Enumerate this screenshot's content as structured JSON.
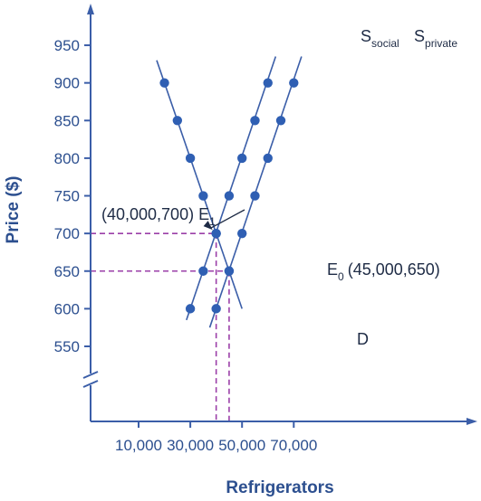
{
  "chart_data": {
    "type": "line",
    "xlabel": "Refrigerators",
    "ylabel": "Price ($)",
    "x_ticks": [
      10000,
      30000,
      50000,
      70000
    ],
    "x_tick_labels": [
      "10,000",
      "30,000",
      "50,000",
      "70,000"
    ],
    "y_ticks": [
      550,
      600,
      650,
      700,
      750,
      800,
      850,
      900,
      950
    ],
    "y_tick_labels": [
      "550",
      "600",
      "650",
      "700",
      "750",
      "800",
      "850",
      "900",
      "950"
    ],
    "y_axis_break": true,
    "xlim": [
      0,
      75000
    ],
    "ylim": [
      550,
      950
    ],
    "colors": {
      "axis": "#3b5ea8",
      "line": "#3b5ea8",
      "point": "#2f5fb3",
      "guide": "#9b3fa8",
      "text": "#1e2b45",
      "axis_text": "#2c4f8f"
    },
    "series": [
      {
        "key": "d",
        "label": "D",
        "points": [
          [
            20000,
            900
          ],
          [
            25000,
            850
          ],
          [
            30000,
            800
          ],
          [
            35000,
            750
          ],
          [
            40000,
            700
          ],
          [
            45000,
            650
          ]
        ],
        "line_extent": [
          [
            17000,
            930
          ],
          [
            50000,
            600
          ]
        ]
      },
      {
        "key": "s_social",
        "label_main": "S",
        "label_sub": "social",
        "points": [
          [
            30000,
            600
          ],
          [
            35000,
            650
          ],
          [
            40000,
            700
          ],
          [
            45000,
            750
          ],
          [
            50000,
            800
          ],
          [
            55000,
            850
          ],
          [
            60000,
            900
          ]
        ],
        "line_extent": [
          [
            28500,
            585
          ],
          [
            63000,
            935
          ]
        ]
      },
      {
        "key": "s_private",
        "label_main": "S",
        "label_sub": "private",
        "points": [
          [
            40000,
            600
          ],
          [
            45000,
            650
          ],
          [
            50000,
            700
          ],
          [
            55000,
            750
          ],
          [
            60000,
            800
          ],
          [
            65000,
            850
          ],
          [
            70000,
            900
          ]
        ],
        "line_extent": [
          [
            37500,
            575
          ],
          [
            73000,
            935
          ]
        ]
      }
    ],
    "equilibria": [
      {
        "key": "e1",
        "x": 40000,
        "y": 700,
        "label_text": "(40,000,700) E",
        "label_sub": "1"
      },
      {
        "key": "e0",
        "x": 45000,
        "y": 650,
        "label_main": "E",
        "label_sub": "0",
        "label_text": "(45,000,650)"
      }
    ]
  }
}
